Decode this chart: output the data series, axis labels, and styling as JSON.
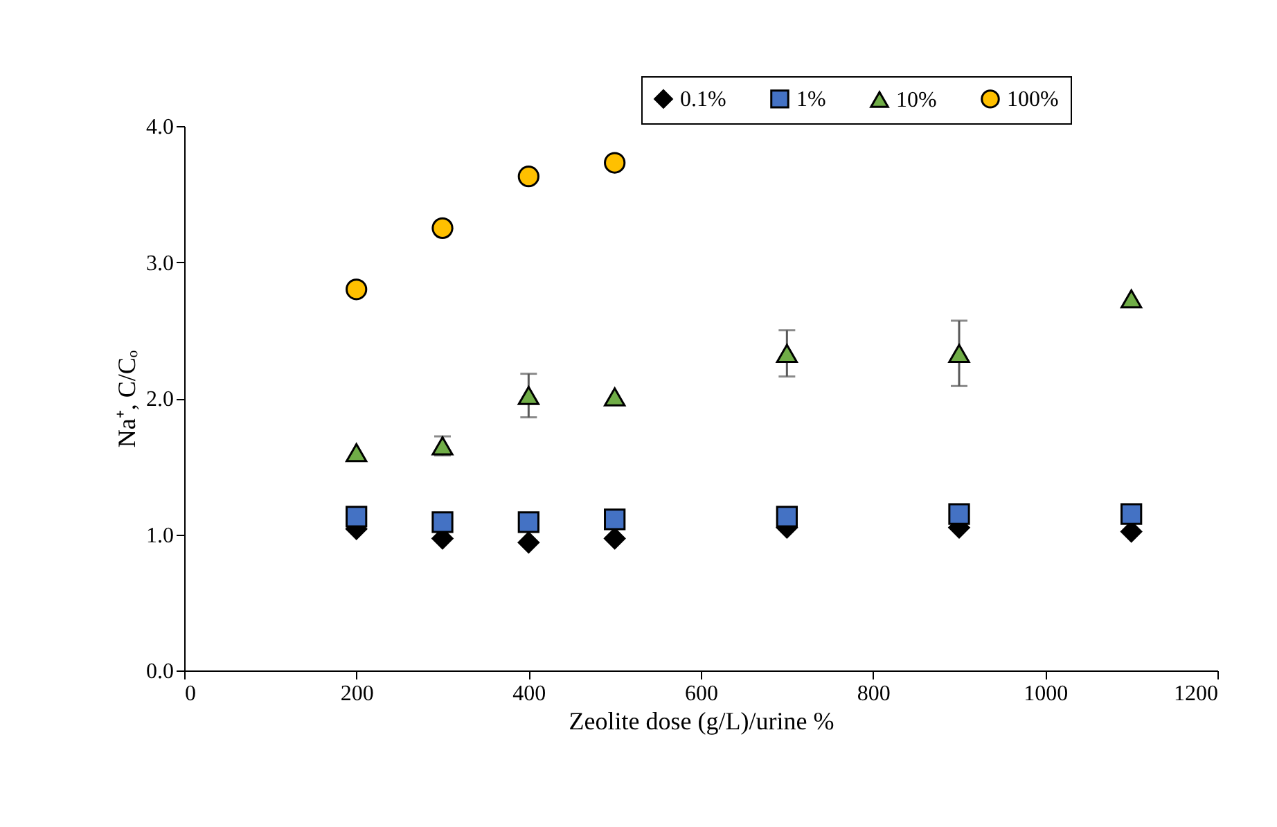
{
  "chart_data": {
    "type": "scatter",
    "xlabel": "Zeolite dose (g/L)/urine %",
    "ylabel": "Na⁺, C/Cₒ",
    "x": [
      200,
      300,
      400,
      500,
      700,
      900,
      1100
    ],
    "xlim": [
      0,
      1200
    ],
    "xticks": [
      0,
      200,
      400,
      600,
      800,
      1000,
      1200
    ],
    "ylim": [
      0,
      4
    ],
    "yticks": [
      {
        "value": 0,
        "label": "0.0"
      },
      {
        "value": 1,
        "label": "1.0"
      },
      {
        "value": 2,
        "label": "2.0"
      },
      {
        "value": 3,
        "label": "3.0"
      },
      {
        "value": 4,
        "label": "4.0"
      }
    ],
    "legend": "top right",
    "grid": false,
    "series": [
      {
        "name": "0.1%",
        "color": "#000000",
        "marker": "diamond",
        "values": [
          1.04,
          0.97,
          0.94,
          0.97,
          1.05,
          1.05,
          1.02
        ]
      },
      {
        "name": "1%",
        "color": "#4472c4",
        "marker": "square",
        "values": [
          1.13,
          1.09,
          1.09,
          1.11,
          1.13,
          1.15,
          1.15
        ]
      },
      {
        "name": "10%",
        "color": "#70ad47",
        "marker": "triangle",
        "values": [
          1.6,
          1.65,
          2.02,
          2.01,
          2.33,
          2.33,
          2.73
        ],
        "errors": [
          null,
          0.07,
          0.16,
          null,
          0.17,
          0.24,
          null
        ]
      },
      {
        "name": "100%",
        "color": "#ffc000",
        "marker": "circle",
        "values": [
          2.8,
          3.25,
          3.63,
          3.73,
          null,
          null,
          null
        ]
      }
    ]
  }
}
